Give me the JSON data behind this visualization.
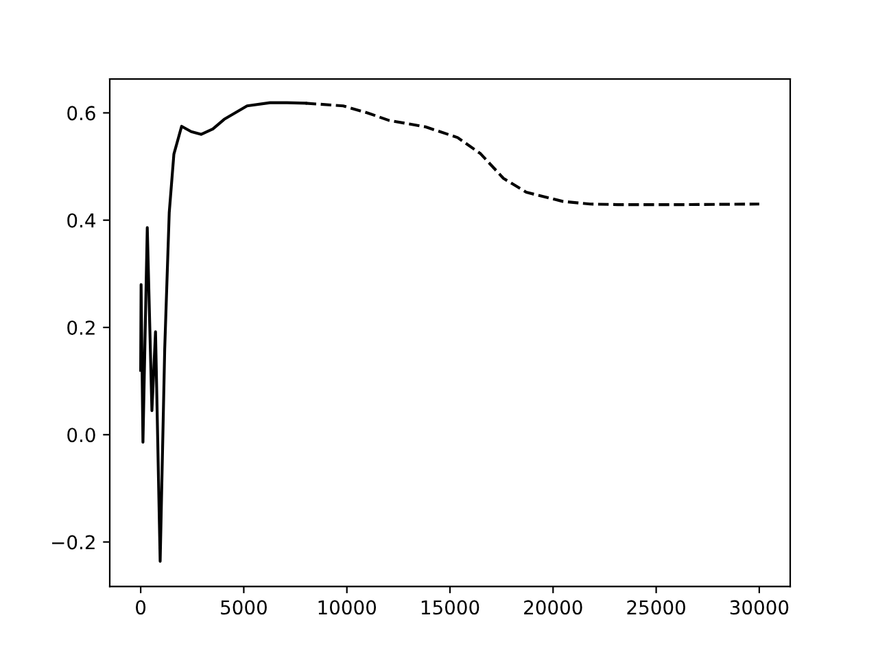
{
  "chart_data": {
    "type": "line",
    "xlim": [
      -1500,
      31500
    ],
    "ylim": [
      -0.283,
      0.663
    ],
    "xticks": [
      0,
      5000,
      10000,
      15000,
      20000,
      25000,
      30000
    ],
    "yticks": [
      {
        "value": -0.2,
        "label": "−0.2"
      },
      {
        "value": 0.0,
        "label": "0.0"
      },
      {
        "value": 0.2,
        "label": "0.2"
      },
      {
        "value": 0.4,
        "label": "0.4"
      },
      {
        "value": 0.6,
        "label": "0.6"
      }
    ],
    "series": [
      {
        "color": "#000000",
        "line_style": "solid",
        "x": [
          0,
          20,
          110,
          320,
          545,
          720,
          945,
          1165,
          1385,
          1610,
          1985,
          2450,
          2940,
          3500,
          4050,
          5160,
          6270,
          7100,
          8000
        ],
        "values": [
          0.12,
          0.28,
          -0.014,
          0.386,
          0.045,
          0.192,
          -0.236,
          0.159,
          0.414,
          0.523,
          0.575,
          0.565,
          0.56,
          0.57,
          0.588,
          0.613,
          0.619,
          0.619,
          0.618
        ]
      },
      {
        "color": "#000000",
        "line_style": "dashed",
        "x": [
          8000,
          9820,
          11000,
          12040,
          13810,
          15370,
          16480,
          17590,
          18700,
          20470,
          21800,
          23140,
          26470,
          30000
        ],
        "values": [
          0.618,
          0.613,
          0.6,
          0.586,
          0.574,
          0.554,
          0.524,
          0.478,
          0.452,
          0.435,
          0.43,
          0.429,
          0.429,
          0.43
        ]
      }
    ]
  }
}
